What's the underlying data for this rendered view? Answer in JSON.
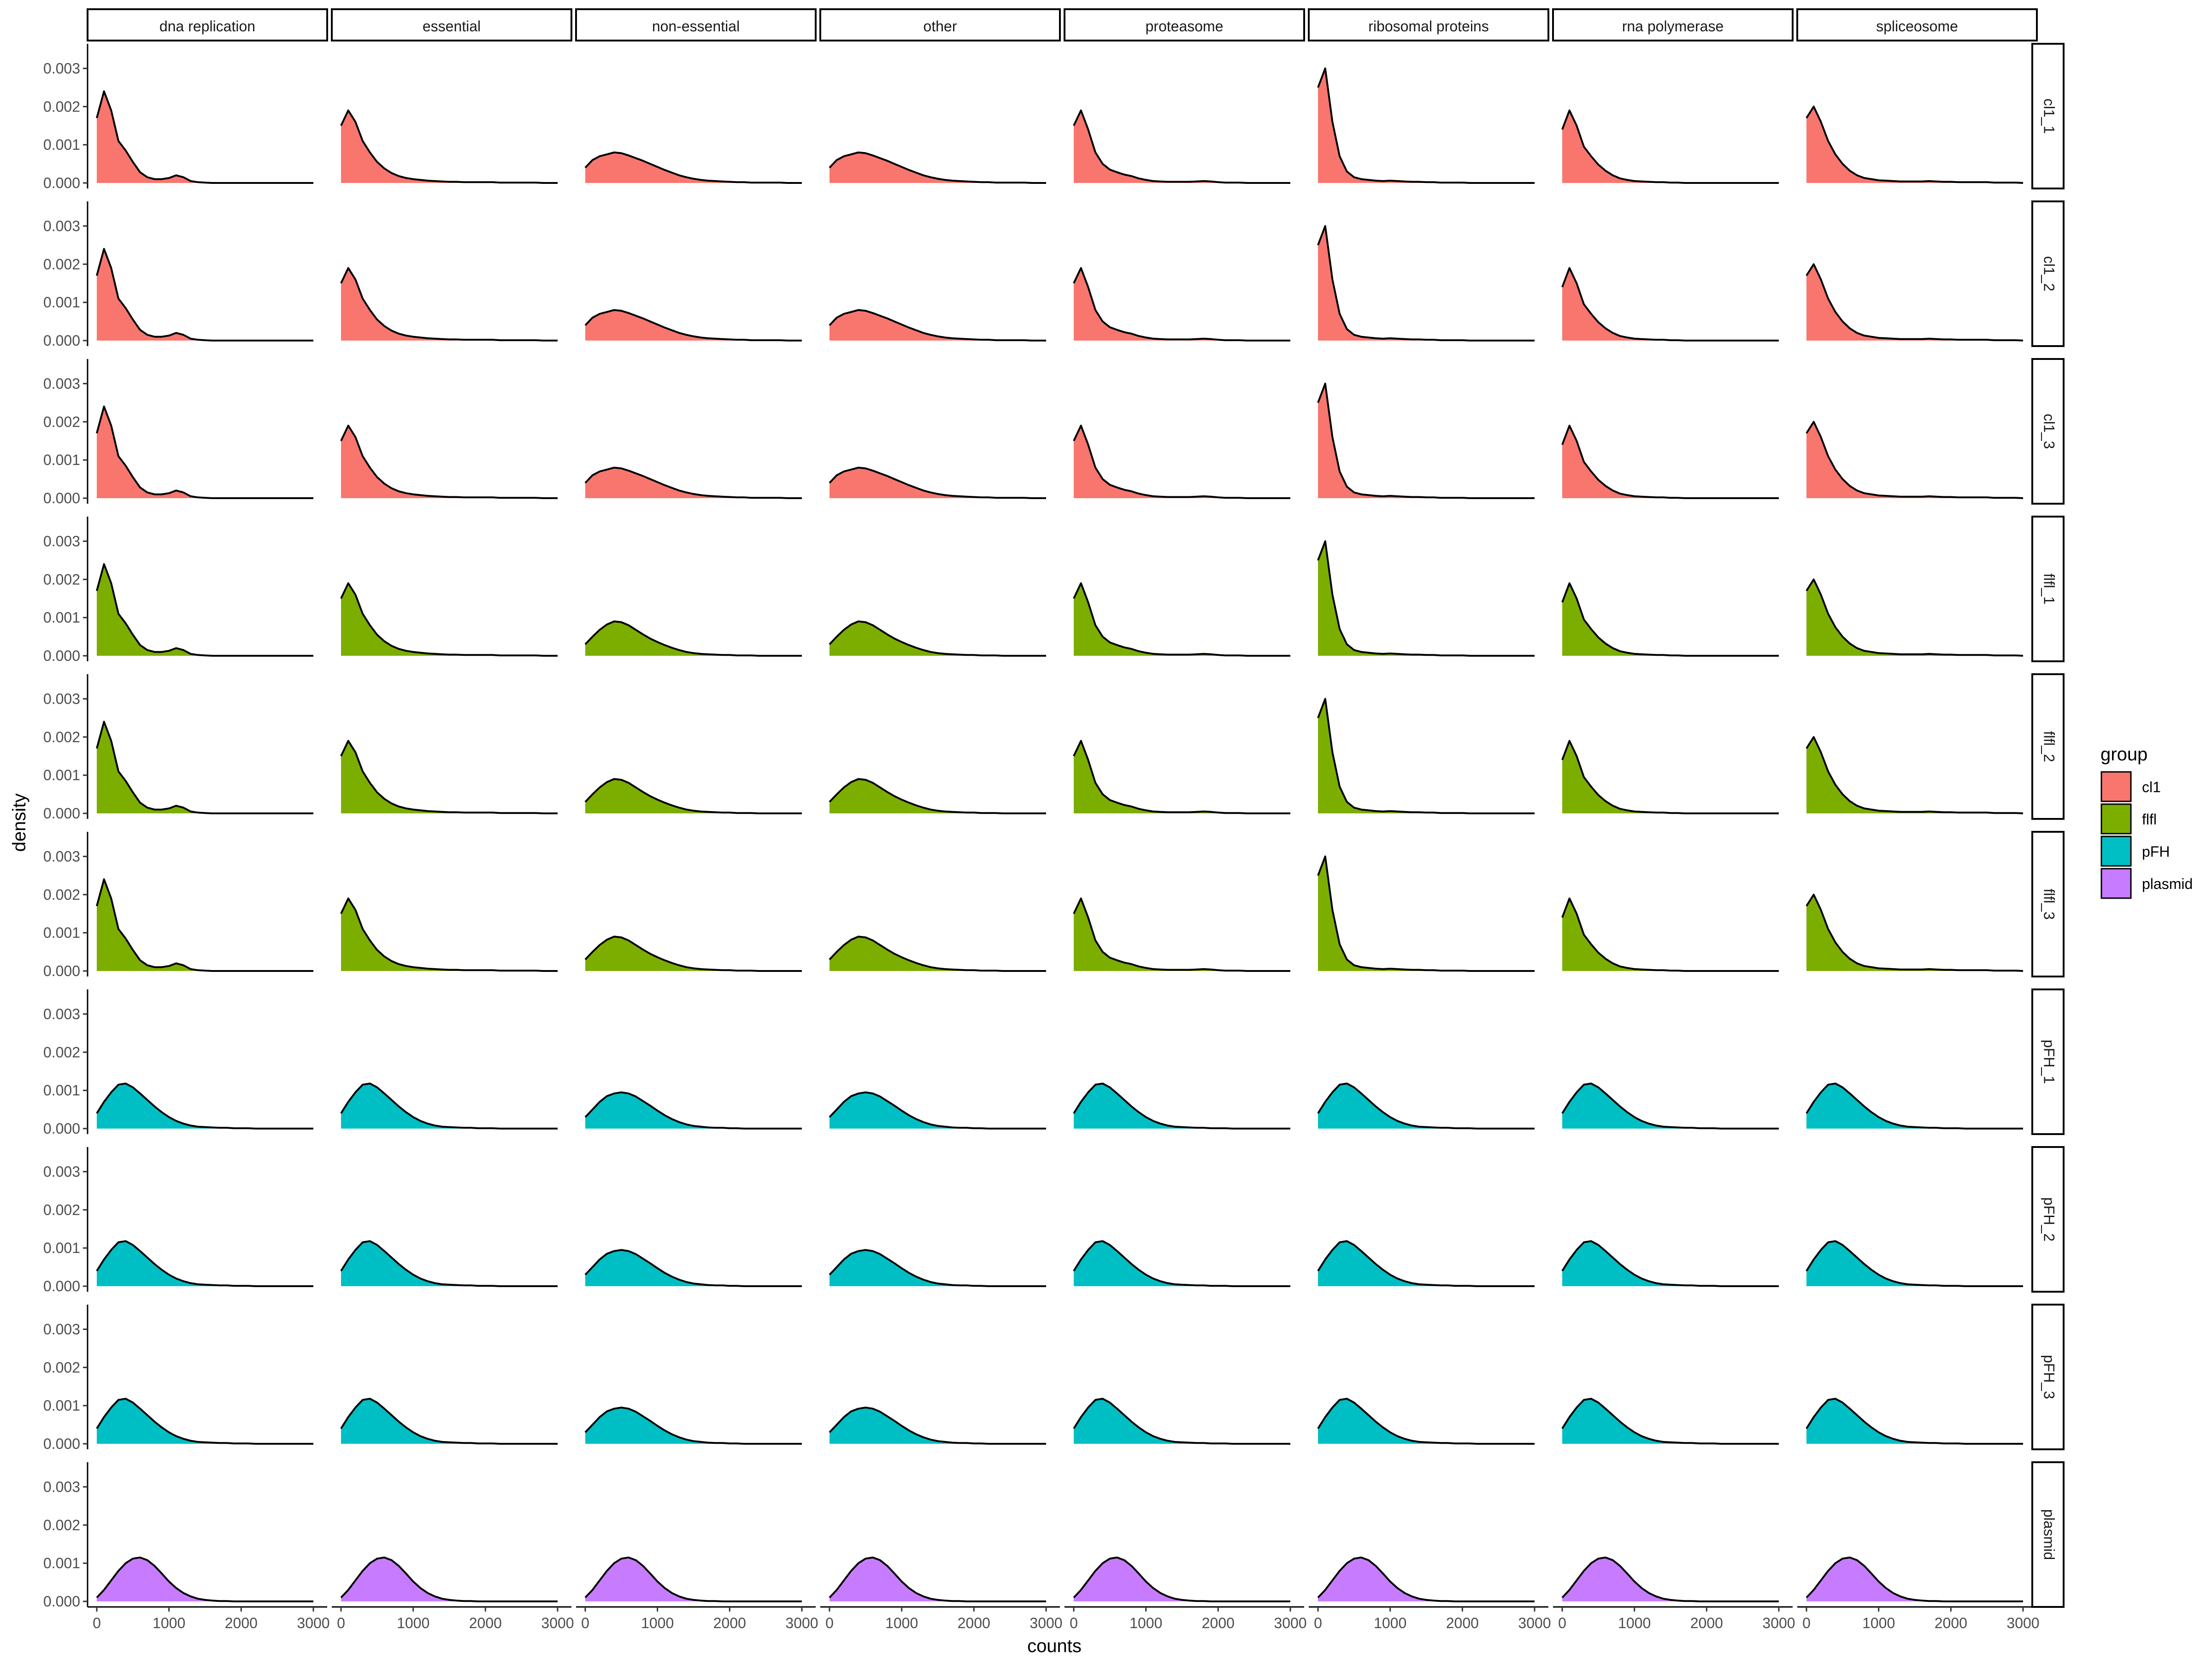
{
  "chart_data": {
    "type": "area",
    "xlabel": "counts",
    "ylabel": "density",
    "xlim": [
      0,
      3000
    ],
    "ylim": [
      0,
      0.0035
    ],
    "x_ticks": [
      "0",
      "1000",
      "2000",
      "3000"
    ],
    "y_ticks": [
      "0.000",
      "0.001",
      "0.002",
      "0.003"
    ],
    "columns": [
      "dna replication",
      "essential",
      "non-essential",
      "other",
      "proteasome",
      "ribosomal proteins",
      "rna polymerase",
      "spliceosome"
    ],
    "rows": [
      {
        "label": "cl1_1",
        "group": "cl1"
      },
      {
        "label": "cl1_2",
        "group": "cl1"
      },
      {
        "label": "cl1_3",
        "group": "cl1"
      },
      {
        "label": "flfl_1",
        "group": "flfl"
      },
      {
        "label": "flfl_2",
        "group": "flfl"
      },
      {
        "label": "flfl_3",
        "group": "flfl"
      },
      {
        "label": "pFH_1",
        "group": "pFH"
      },
      {
        "label": "pFH_2",
        "group": "pFH"
      },
      {
        "label": "pFH_3",
        "group": "pFH"
      },
      {
        "label": "plasmid",
        "group": "plasmid"
      }
    ],
    "legend": {
      "title": "group",
      "position": "right",
      "entries": [
        {
          "name": "cl1",
          "color": "#F8766D"
        },
        {
          "name": "flfl",
          "color": "#7CAE00"
        },
        {
          "name": "pFH",
          "color": "#00BFC4"
        },
        {
          "name": "plasmid",
          "color": "#C77CFF"
        }
      ]
    },
    "grid": false,
    "curve_x": [
      0,
      100,
      200,
      300,
      400,
      500,
      600,
      700,
      800,
      900,
      1000,
      1100,
      1200,
      1300,
      1400,
      1500,
      1600,
      1700,
      1800,
      1900,
      2000,
      2100,
      2200,
      2300,
      2400,
      2500,
      2600,
      2700,
      2800,
      2900,
      3000
    ],
    "curves": {
      "skew_dna": [
        0.0017,
        0.0024,
        0.0019,
        0.0011,
        0.00085,
        0.00055,
        0.00028,
        0.00015,
        0.0001,
        0.0001,
        0.00013,
        0.0002,
        0.00015,
        5e-05,
        2e-05,
        1e-05,
        0,
        0,
        0,
        0,
        0,
        0,
        0,
        0,
        0,
        0,
        0,
        0,
        0,
        0,
        0
      ],
      "skew_ess": [
        0.0015,
        0.0019,
        0.0016,
        0.0011,
        0.0008,
        0.00055,
        0.00038,
        0.00026,
        0.00018,
        0.00013,
        0.0001,
        8e-05,
        6e-05,
        5e-05,
        4e-05,
        3e-05,
        3e-05,
        2e-05,
        2e-05,
        2e-05,
        2e-05,
        2e-05,
        1e-05,
        1e-05,
        1e-05,
        1e-05,
        1e-05,
        1e-05,
        0,
        0,
        0
      ],
      "skew_prot": [
        0.0015,
        0.0019,
        0.0014,
        0.0008,
        0.0005,
        0.00035,
        0.00028,
        0.00022,
        0.00018,
        0.00012,
        8e-05,
        5e-05,
        4e-05,
        3e-05,
        3e-05,
        3e-05,
        3e-05,
        4e-05,
        5e-05,
        4e-05,
        2e-05,
        1e-05,
        1e-05,
        1e-05,
        0,
        0,
        0,
        0,
        0,
        0,
        0
      ],
      "skew_ribo": [
        0.0025,
        0.003,
        0.0016,
        0.0007,
        0.0003,
        0.00015,
        0.0001,
        8e-05,
        6e-05,
        5e-05,
        6e-05,
        5e-05,
        4e-05,
        3e-05,
        3e-05,
        2e-05,
        2e-05,
        1e-05,
        1e-05,
        1e-05,
        1e-05,
        0,
        0,
        0,
        0,
        0,
        0,
        0,
        0,
        0,
        0
      ],
      "skew_rnap": [
        0.0014,
        0.0019,
        0.0015,
        0.00095,
        0.0007,
        0.00048,
        0.00032,
        0.0002,
        0.00012,
        8e-05,
        5e-05,
        4e-05,
        3e-05,
        2e-05,
        2e-05,
        1e-05,
        1e-05,
        0,
        0,
        0,
        0,
        0,
        0,
        0,
        0,
        0,
        0,
        0,
        0,
        0,
        0
      ],
      "skew_spl": [
        0.0017,
        0.002,
        0.0016,
        0.0011,
        0.00075,
        0.0005,
        0.00032,
        0.0002,
        0.00013,
        0.0001,
        7e-05,
        6e-05,
        5e-05,
        4e-05,
        4e-05,
        4e-05,
        4e-05,
        5e-05,
        4e-05,
        3e-05,
        3e-05,
        2e-05,
        2e-05,
        2e-05,
        2e-05,
        2e-05,
        1e-05,
        1e-05,
        1e-05,
        1e-05,
        0
      ],
      "broad_cl1": [
        0.0004,
        0.0006,
        0.0007,
        0.00075,
        0.0008,
        0.00078,
        0.00072,
        0.00065,
        0.00058,
        0.0005,
        0.00042,
        0.00034,
        0.00027,
        0.0002,
        0.00015,
        0.00011,
        8e-05,
        6e-05,
        5e-05,
        4e-05,
        3e-05,
        2e-05,
        2e-05,
        1e-05,
        1e-05,
        1e-05,
        1e-05,
        1e-05,
        0,
        0,
        0
      ],
      "broad_flfl": [
        0.0003,
        0.0005,
        0.00068,
        0.00082,
        0.0009,
        0.00088,
        0.0008,
        0.00068,
        0.00056,
        0.00045,
        0.00036,
        0.00028,
        0.00021,
        0.00015,
        0.0001,
        7e-05,
        5e-05,
        4e-05,
        3e-05,
        2e-05,
        2e-05,
        1e-05,
        1e-05,
        1e-05,
        0,
        0,
        0,
        0,
        0,
        0,
        0
      ],
      "mid_pFH": [
        0.0004,
        0.0007,
        0.00095,
        0.00115,
        0.00118,
        0.00108,
        0.00092,
        0.00075,
        0.00058,
        0.00043,
        0.0003,
        0.0002,
        0.00013,
        8e-05,
        5e-05,
        4e-05,
        3e-05,
        2e-05,
        2e-05,
        1e-05,
        1e-05,
        1e-05,
        0,
        0,
        0,
        0,
        0,
        0,
        0,
        0,
        0
      ],
      "mid_pFH_wide": [
        0.0003,
        0.0005,
        0.0007,
        0.00085,
        0.00092,
        0.00095,
        0.00092,
        0.00084,
        0.00072,
        0.0006,
        0.00047,
        0.00035,
        0.00025,
        0.00017,
        0.00011,
        7e-05,
        5e-05,
        3e-05,
        2e-05,
        2e-05,
        1e-05,
        1e-05,
        0,
        0,
        0,
        0,
        0,
        0,
        0,
        0,
        0
      ],
      "plasmid": [
        0.0001,
        0.0003,
        0.00055,
        0.0008,
        0.001,
        0.00112,
        0.00115,
        0.00108,
        0.00093,
        0.00073,
        0.00052,
        0.00035,
        0.00022,
        0.00013,
        7e-05,
        4e-05,
        2e-05,
        1e-05,
        1e-05,
        0,
        0,
        0,
        0,
        0,
        0,
        0,
        0,
        0,
        0,
        0,
        0
      ]
    },
    "panel_curve_map": {
      "cl1": [
        "skew_dna",
        "skew_ess",
        "broad_cl1",
        "broad_cl1",
        "skew_prot",
        "skew_ribo",
        "skew_rnap",
        "skew_spl"
      ],
      "flfl": [
        "skew_dna",
        "skew_ess",
        "broad_flfl",
        "broad_flfl",
        "skew_prot",
        "skew_ribo",
        "skew_rnap",
        "skew_spl"
      ],
      "pFH": [
        "mid_pFH",
        "mid_pFH",
        "mid_pFH_wide",
        "mid_pFH_wide",
        "mid_pFH",
        "mid_pFH",
        "mid_pFH",
        "mid_pFH"
      ],
      "plasmid": [
        "plasmid",
        "plasmid",
        "plasmid",
        "plasmid",
        "plasmid",
        "plasmid",
        "plasmid",
        "plasmid"
      ]
    }
  }
}
